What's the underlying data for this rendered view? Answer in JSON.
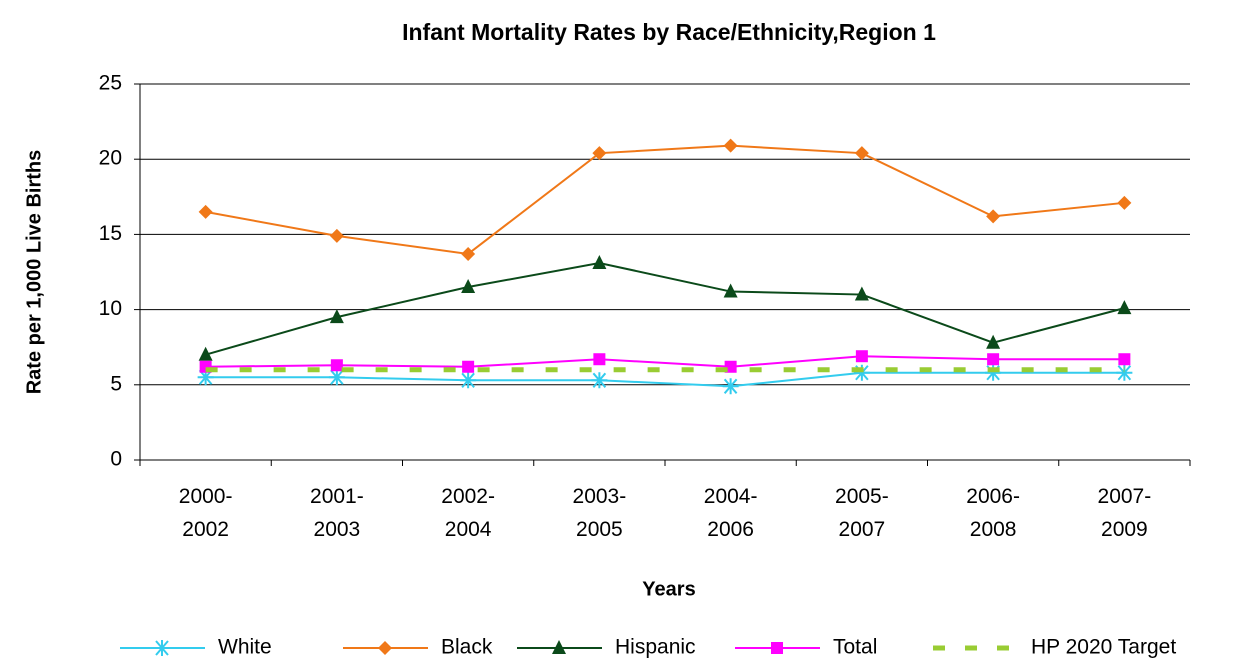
{
  "chart_data": {
    "type": "line",
    "title": "Infant Mortality Rates by Race/Ethnicity,Region 1",
    "x_label": "Years",
    "y_label": "Rate per 1,000 Live Births",
    "categories": [
      "2000-2002",
      "2001-2003",
      "2002-2004",
      "2003-2005",
      "2004-2006",
      "2005-2007",
      "2006-2008",
      "2007-2009"
    ],
    "ylim": [
      0,
      25
    ],
    "yticks": [
      0,
      5,
      10,
      15,
      20,
      25
    ],
    "grid": true,
    "legend": "bottom",
    "series": [
      {
        "name": "White",
        "color": "#33ccee",
        "marker": "star",
        "values": [
          5.5,
          5.5,
          5.3,
          5.3,
          4.9,
          5.8,
          5.8,
          5.8
        ]
      },
      {
        "name": "Black",
        "color": "#f07818",
        "marker": "diamond",
        "values": [
          16.5,
          14.9,
          13.7,
          20.4,
          20.9,
          20.4,
          16.2,
          17.1
        ]
      },
      {
        "name": "Hispanic",
        "color": "#0b4a1a",
        "marker": "triangle",
        "values": [
          7.0,
          9.5,
          11.5,
          13.1,
          11.2,
          11.0,
          7.8,
          10.1
        ]
      },
      {
        "name": "Total",
        "color": "#ff00ff",
        "marker": "square",
        "values": [
          6.2,
          6.3,
          6.2,
          6.7,
          6.2,
          6.9,
          6.7,
          6.7
        ]
      },
      {
        "name": "HP 2020 Target",
        "color": "#99cc33",
        "marker": "none",
        "dashed": true,
        "values": [
          6.0,
          6.0,
          6.0,
          6.0,
          6.0,
          6.0,
          6.0,
          6.0
        ]
      }
    ]
  }
}
